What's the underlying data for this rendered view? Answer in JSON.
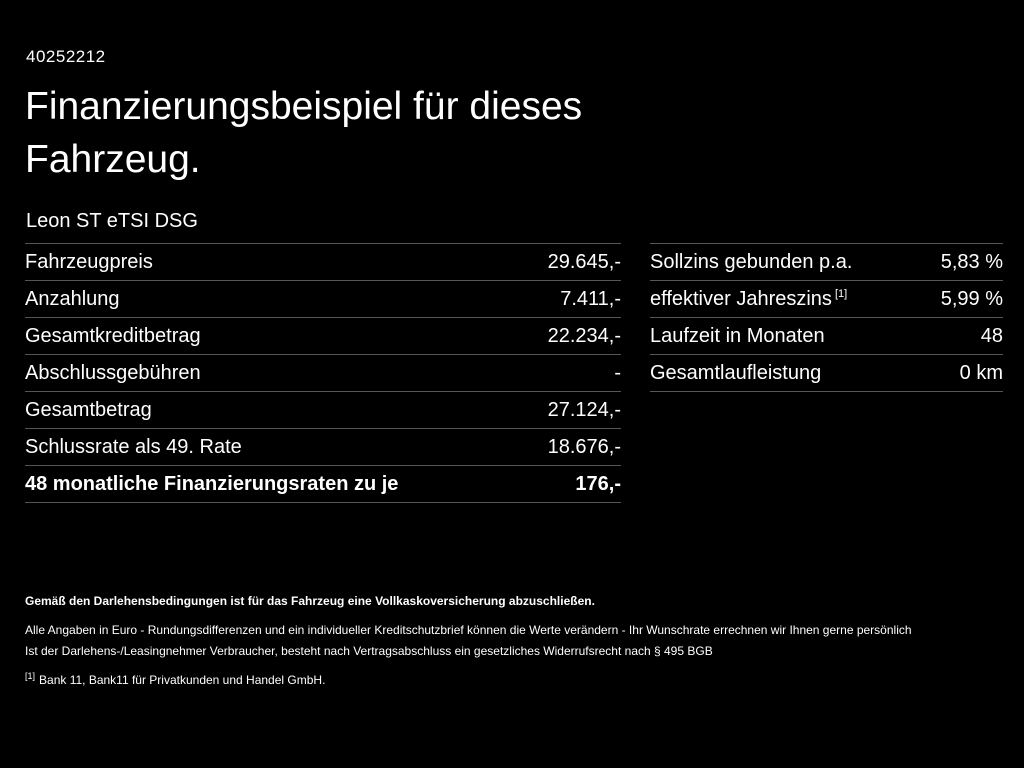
{
  "header": {
    "id": "40252212",
    "title": "Finanzierungsbeispiel für dieses Fahrzeug.",
    "vehicle": "Leon ST eTSI DSG"
  },
  "finance_table": {
    "rows": [
      {
        "label": "Fahrzeugpreis",
        "value": "29.645,-"
      },
      {
        "label": "Anzahlung",
        "value": "7.411,-"
      },
      {
        "label": "Gesamtkreditbetrag",
        "value": "22.234,-"
      },
      {
        "label": "Abschlussgebühren",
        "value": "-"
      },
      {
        "label": "Gesamtbetrag",
        "value": "27.124,-"
      },
      {
        "label": "Schlussrate als 49. Rate",
        "value": "18.676,-"
      },
      {
        "label": "48 monatliche Finanzierungsraten zu je",
        "value": "176,-"
      }
    ]
  },
  "conditions_table": {
    "rows": [
      {
        "label": "Sollzins gebunden p.a.",
        "footnote_ref": "",
        "value": "5,83 %"
      },
      {
        "label": "effektiver Jahreszins",
        "footnote_ref": "[1]",
        "value": "5,99 %"
      },
      {
        "label": "Laufzeit in Monaten",
        "footnote_ref": "",
        "value": "48"
      },
      {
        "label": "Gesamtlaufleistung",
        "footnote_ref": "",
        "value": "0 km"
      }
    ]
  },
  "footer": {
    "line1": "Gemäß den Darlehensbedingungen ist für das Fahrzeug eine Vollkaskoversicherung abzuschließen.",
    "line2": "Alle Angaben in Euro - Rundungsdifferenzen und ein individueller Kreditschutzbrief können die Werte verändern - Ihr Wunschrate errechnen wir Ihnen gerne persönlich",
    "line3": "Ist der Darlehens-/Leasingnehmer Verbraucher, besteht nach Vertragsabschluss ein gesetzliches Widerrufsrecht nach § 495 BGB",
    "footnote_ref": "[1]",
    "footnote_text": "Bank 11, Bank11 für Privatkunden und Handel GmbH."
  },
  "colors": {
    "background": "#000000",
    "text": "#ffffff",
    "divider": "#555555"
  }
}
